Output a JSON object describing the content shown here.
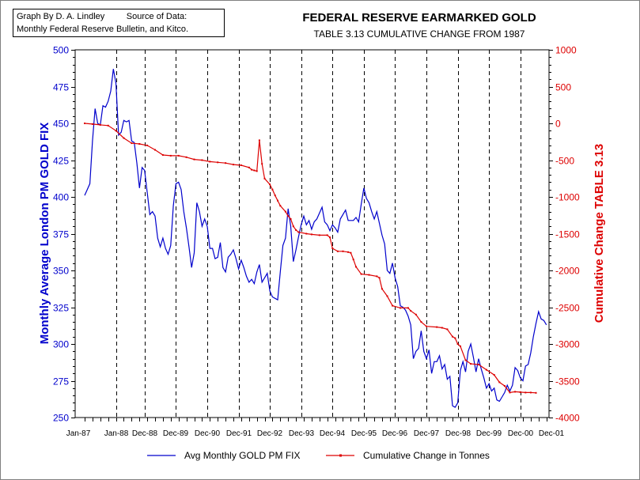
{
  "credit": {
    "line1_left": "Graph By D. A. Lindley",
    "line1_right": "Source of Data:",
    "line2": "Monthly Federal Reserve Bulletin, and Kitco."
  },
  "chart_data": {
    "type": "line",
    "title": "FEDERAL RESERVE EARMARKED GOLD",
    "subtitle": "TABLE 3.13 CUMULATIVE CHANGE FROM 1987",
    "xlabel": "",
    "ylabel": "Monthly Average London PM GOLD FIX",
    "y2label": "Cumulative Change TABLE 3.13",
    "ylim": [
      250,
      500
    ],
    "y2lim": [
      -4000,
      1000
    ],
    "yticks": [
      "250",
      "275",
      "300",
      "325",
      "350",
      "375",
      "400",
      "425",
      "450",
      "475",
      "500"
    ],
    "y2ticks": [
      "-4000",
      "-3500",
      "-3000",
      "-2500",
      "-2000",
      "-1500",
      "-1000",
      "-500",
      "0",
      "500",
      "1000"
    ],
    "x_range_months": [
      0,
      178
    ],
    "x_tick_labels": [
      {
        "label": "Jan-87",
        "month": 0
      },
      {
        "label": "Jan-88",
        "month": 12
      },
      {
        "label": "Dec-88",
        "month": 23
      },
      {
        "label": "Dec-89",
        "month": 35
      },
      {
        "label": "Dec-90",
        "month": 47
      },
      {
        "label": "Dec-91",
        "month": 59
      },
      {
        "label": "Dec-92",
        "month": 71
      },
      {
        "label": "Dec-93",
        "month": 83
      },
      {
        "label": "Dec-94",
        "month": 95
      },
      {
        "label": "Dec-95",
        "month": 107
      },
      {
        "label": "Dec-96",
        "month": 119
      },
      {
        "label": "Dec-97",
        "month": 131
      },
      {
        "label": "Dec-98",
        "month": 143
      },
      {
        "label": "Dec-99",
        "month": 155
      },
      {
        "label": "Dec-00",
        "month": 167
      },
      {
        "label": "Dec-01",
        "month": 179
      }
    ],
    "grid_vertical_dashed": true,
    "legend_position": "bottom",
    "series": [
      {
        "name": "Avg Monthly GOLD PM FIX",
        "color": "#0000cc",
        "axis": "left",
        "points": [
          [
            0,
            401
          ],
          [
            1,
            405
          ],
          [
            2,
            409
          ],
          [
            3,
            438
          ],
          [
            4,
            460
          ],
          [
            5,
            450
          ],
          [
            6,
            449
          ],
          [
            7,
            462
          ],
          [
            8,
            461
          ],
          [
            9,
            465
          ],
          [
            10,
            472
          ],
          [
            11,
            487
          ],
          [
            12,
            477
          ],
          [
            13,
            442
          ],
          [
            14,
            444
          ],
          [
            15,
            452
          ],
          [
            16,
            451
          ],
          [
            17,
            452
          ],
          [
            18,
            438
          ],
          [
            19,
            437
          ],
          [
            20,
            423
          ],
          [
            21,
            406
          ],
          [
            22,
            420
          ],
          [
            23,
            418
          ],
          [
            24,
            403
          ],
          [
            25,
            388
          ],
          [
            26,
            390
          ],
          [
            27,
            387
          ],
          [
            28,
            372
          ],
          [
            29,
            366
          ],
          [
            30,
            372
          ],
          [
            31,
            365
          ],
          [
            32,
            361
          ],
          [
            33,
            367
          ],
          [
            34,
            394
          ],
          [
            35,
            409
          ],
          [
            36,
            410
          ],
          [
            37,
            405
          ],
          [
            38,
            390
          ],
          [
            39,
            379
          ],
          [
            40,
            366
          ],
          [
            41,
            352
          ],
          [
            42,
            362
          ],
          [
            43,
            396
          ],
          [
            44,
            390
          ],
          [
            45,
            380
          ],
          [
            46,
            385
          ],
          [
            47,
            380
          ],
          [
            48,
            365
          ],
          [
            49,
            365
          ],
          [
            50,
            358
          ],
          [
            51,
            359
          ],
          [
            52,
            369
          ],
          [
            53,
            352
          ],
          [
            54,
            349
          ],
          [
            55,
            359
          ],
          [
            56,
            361
          ],
          [
            57,
            364
          ],
          [
            58,
            358
          ],
          [
            59,
            351
          ],
          [
            60,
            357
          ],
          [
            61,
            352
          ],
          [
            62,
            346
          ],
          [
            63,
            342
          ],
          [
            64,
            344
          ],
          [
            65,
            341
          ],
          [
            66,
            349
          ],
          [
            67,
            354
          ],
          [
            68,
            342
          ],
          [
            69,
            345
          ],
          [
            70,
            348
          ],
          [
            71,
            336
          ],
          [
            72,
            332
          ],
          [
            73,
            331
          ],
          [
            74,
            330
          ],
          [
            75,
            349
          ],
          [
            76,
            367
          ],
          [
            77,
            372
          ],
          [
            78,
            392
          ],
          [
            79,
            380
          ],
          [
            80,
            356
          ],
          [
            81,
            364
          ],
          [
            82,
            373
          ],
          [
            83,
            381
          ],
          [
            84,
            387
          ],
          [
            85,
            381
          ],
          [
            86,
            384
          ],
          [
            87,
            378
          ],
          [
            88,
            383
          ],
          [
            89,
            385
          ],
          [
            90,
            389
          ],
          [
            91,
            393
          ],
          [
            92,
            383
          ],
          [
            93,
            381
          ],
          [
            94,
            377
          ],
          [
            95,
            381
          ],
          [
            96,
            379
          ],
          [
            97,
            376
          ],
          [
            98,
            385
          ],
          [
            99,
            388
          ],
          [
            100,
            391
          ],
          [
            101,
            384
          ],
          [
            102,
            384
          ],
          [
            103,
            384
          ],
          [
            104,
            386
          ],
          [
            105,
            383
          ],
          [
            106,
            395
          ],
          [
            107,
            406
          ],
          [
            108,
            399
          ],
          [
            109,
            396
          ],
          [
            110,
            390
          ],
          [
            111,
            385
          ],
          [
            112,
            390
          ],
          [
            113,
            382
          ],
          [
            114,
            374
          ],
          [
            115,
            368
          ],
          [
            116,
            350
          ],
          [
            117,
            348
          ],
          [
            118,
            355
          ],
          [
            119,
            345
          ],
          [
            120,
            339
          ],
          [
            121,
            326
          ],
          [
            122,
            325
          ],
          [
            123,
            323
          ],
          [
            124,
            319
          ],
          [
            125,
            313
          ],
          [
            126,
            290
          ],
          [
            127,
            295
          ],
          [
            128,
            297
          ],
          [
            129,
            309
          ],
          [
            130,
            295
          ],
          [
            131,
            290
          ],
          [
            132,
            296
          ],
          [
            133,
            280
          ],
          [
            134,
            288
          ],
          [
            135,
            288
          ],
          [
            136,
            292
          ],
          [
            137,
            283
          ],
          [
            138,
            286
          ],
          [
            139,
            276
          ],
          [
            140,
            278
          ],
          [
            141,
            258
          ],
          [
            142,
            257
          ],
          [
            143,
            260
          ],
          [
            144,
            282
          ],
          [
            145,
            288
          ],
          [
            146,
            281
          ],
          [
            147,
            295
          ],
          [
            148,
            300
          ],
          [
            149,
            291
          ],
          [
            150,
            281
          ],
          [
            151,
            290
          ],
          [
            152,
            283
          ],
          [
            153,
            277
          ],
          [
            154,
            270
          ],
          [
            155,
            273
          ],
          [
            156,
            268
          ],
          [
            157,
            270
          ],
          [
            158,
            262
          ],
          [
            159,
            261
          ],
          [
            160,
            264
          ],
          [
            161,
            267
          ],
          [
            162,
            272
          ],
          [
            163,
            268
          ],
          [
            164,
            272
          ],
          [
            165,
            284
          ],
          [
            166,
            282
          ],
          [
            167,
            277
          ],
          [
            168,
            275
          ],
          [
            169,
            285
          ],
          [
            170,
            286
          ],
          [
            171,
            294
          ],
          [
            172,
            305
          ],
          [
            173,
            314
          ],
          [
            174,
            322
          ],
          [
            175,
            317
          ],
          [
            176,
            316
          ],
          [
            177,
            313
          ]
        ]
      },
      {
        "name": "Cumulative Change in Tonnes",
        "color": "#dd0000",
        "axis": "right",
        "points": [
          [
            0,
            0
          ],
          [
            3,
            -10
          ],
          [
            6,
            -20
          ],
          [
            9,
            -30
          ],
          [
            12,
            -100
          ],
          [
            15,
            -200
          ],
          [
            18,
            -270
          ],
          [
            21,
            -280
          ],
          [
            24,
            -300
          ],
          [
            27,
            -360
          ],
          [
            30,
            -430
          ],
          [
            33,
            -440
          ],
          [
            36,
            -440
          ],
          [
            39,
            -460
          ],
          [
            42,
            -490
          ],
          [
            45,
            -500
          ],
          [
            48,
            -520
          ],
          [
            51,
            -530
          ],
          [
            54,
            -540
          ],
          [
            57,
            -560
          ],
          [
            60,
            -570
          ],
          [
            63,
            -600
          ],
          [
            64,
            -630
          ],
          [
            65,
            -640
          ],
          [
            66,
            -650
          ],
          [
            67,
            -230
          ],
          [
            68,
            -550
          ],
          [
            69,
            -750
          ],
          [
            71,
            -830
          ],
          [
            72,
            -900
          ],
          [
            73,
            -980
          ],
          [
            74,
            -1050
          ],
          [
            75,
            -1120
          ],
          [
            77,
            -1200
          ],
          [
            78,
            -1260
          ],
          [
            79,
            -1300
          ],
          [
            80,
            -1400
          ],
          [
            81,
            -1450
          ],
          [
            82,
            -1480
          ],
          [
            85,
            -1500
          ],
          [
            87,
            -1510
          ],
          [
            90,
            -1520
          ],
          [
            93,
            -1520
          ],
          [
            94,
            -1550
          ],
          [
            95,
            -1700
          ],
          [
            97,
            -1740
          ],
          [
            99,
            -1740
          ],
          [
            101,
            -1750
          ],
          [
            102,
            -1760
          ],
          [
            103,
            -1850
          ],
          [
            104,
            -1950
          ],
          [
            106,
            -2050
          ],
          [
            109,
            -2060
          ],
          [
            112,
            -2080
          ],
          [
            113,
            -2100
          ],
          [
            114,
            -2250
          ],
          [
            116,
            -2350
          ],
          [
            118,
            -2480
          ],
          [
            121,
            -2510
          ],
          [
            124,
            -2510
          ],
          [
            125,
            -2550
          ],
          [
            127,
            -2600
          ],
          [
            129,
            -2700
          ],
          [
            131,
            -2760
          ],
          [
            135,
            -2770
          ],
          [
            137,
            -2780
          ],
          [
            139,
            -2800
          ],
          [
            141,
            -2900
          ],
          [
            142,
            -2920
          ],
          [
            143,
            -3000
          ],
          [
            144,
            -3030
          ],
          [
            146,
            -3220
          ],
          [
            148,
            -3270
          ],
          [
            151,
            -3280
          ],
          [
            154,
            -3350
          ],
          [
            157,
            -3420
          ],
          [
            159,
            -3520
          ],
          [
            161,
            -3570
          ],
          [
            163,
            -3660
          ],
          [
            165,
            -3650
          ],
          [
            167,
            -3655
          ],
          [
            169,
            -3660
          ],
          [
            171,
            -3660
          ],
          [
            173,
            -3665
          ]
        ]
      }
    ]
  }
}
